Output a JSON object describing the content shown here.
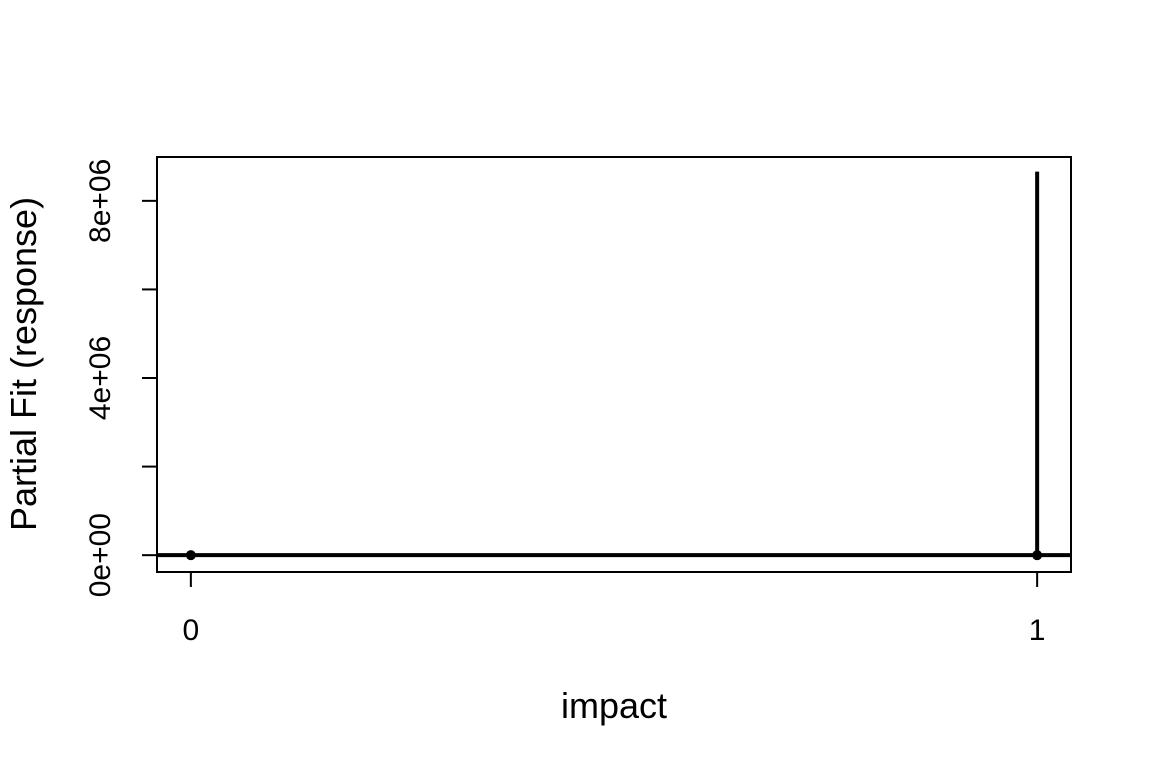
{
  "chart_data": {
    "type": "line",
    "title": "",
    "xlabel": "impact",
    "ylabel": "Partial Fit (response)",
    "x_ticks": [
      "0",
      "1"
    ],
    "y_ticks": [
      "0e+00",
      "4e+06",
      "8e+06"
    ],
    "y_tick_values": [
      0,
      2000000,
      4000000,
      6000000,
      8000000
    ],
    "y_tick_labeled": [
      0,
      4000000,
      8000000
    ],
    "xlim": [
      -0.04,
      1.04
    ],
    "ylim": [
      -380000,
      8990000
    ],
    "grid": false,
    "legend": "none",
    "points": [
      {
        "x": 0,
        "y": 0
      },
      {
        "x": 1,
        "y": 0
      }
    ],
    "reference_line": {
      "y": 0
    },
    "interval_segment": {
      "x": 1,
      "y_low": 0,
      "y_high": 8660000
    },
    "colors": {
      "line": "#000000",
      "background": "#ffffff"
    }
  }
}
